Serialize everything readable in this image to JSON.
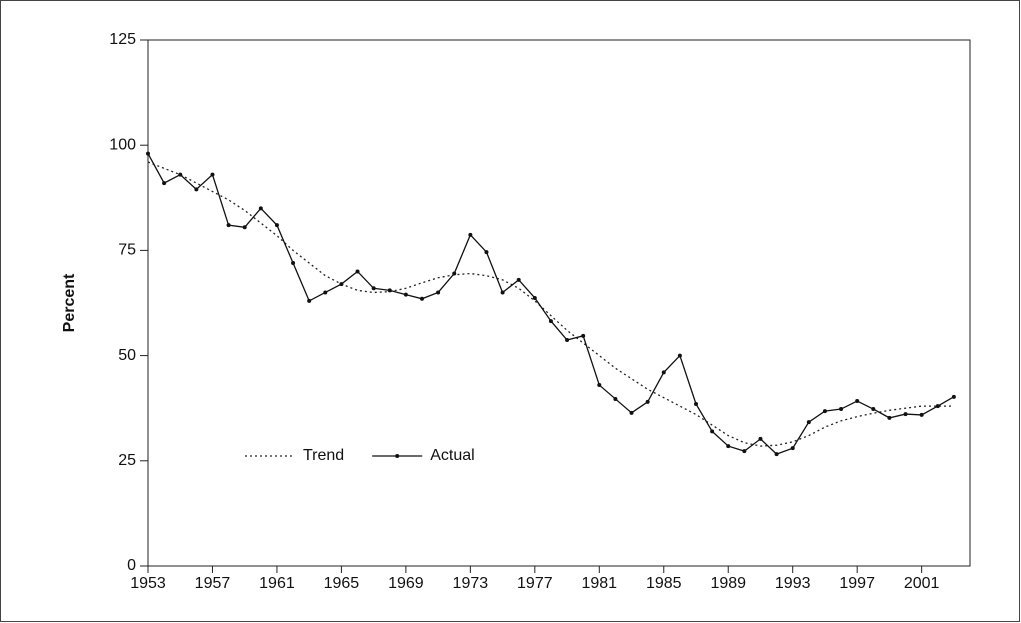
{
  "chart_data": {
    "type": "line",
    "y_label": "Percent",
    "x": [
      1953,
      1954,
      1955,
      1956,
      1957,
      1958,
      1959,
      1960,
      1961,
      1962,
      1963,
      1964,
      1965,
      1966,
      1967,
      1968,
      1969,
      1970,
      1971,
      1972,
      1973,
      1974,
      1975,
      1976,
      1977,
      1978,
      1979,
      1980,
      1981,
      1982,
      1983,
      1984,
      1985,
      1986,
      1987,
      1988,
      1989,
      1990,
      1991,
      1992,
      1993,
      1994,
      1995,
      1996,
      1997,
      1998,
      1999,
      2000,
      2001,
      2002,
      2003
    ],
    "series": [
      {
        "name": "Trend",
        "color": "#222222",
        "style": "dotted",
        "markers": false,
        "values": [
          96,
          94.5,
          93,
          91,
          89,
          87,
          84.5,
          81.5,
          78.5,
          75,
          72,
          69,
          67,
          65.5,
          65,
          65.2,
          66,
          67.3,
          68.5,
          69.2,
          69.5,
          69,
          68,
          66,
          63,
          59.5,
          56,
          53,
          50,
          47,
          44.5,
          42,
          40,
          38,
          36,
          33.5,
          31,
          29.3,
          28.5,
          28.7,
          29.5,
          31,
          33,
          34.5,
          35.5,
          36.3,
          37,
          37.5,
          38,
          38,
          38
        ]
      },
      {
        "name": "Actual",
        "color": "#111111",
        "style": "solid",
        "markers": true,
        "values": [
          98,
          91,
          93,
          89.5,
          93,
          81,
          80.5,
          85,
          81,
          72,
          63,
          65,
          67,
          70,
          66,
          65.5,
          64.5,
          63.5,
          65,
          69.5,
          78.7,
          74.6,
          65,
          68,
          63.7,
          58.2,
          53.7,
          54.7,
          43,
          39.7,
          36.4,
          39,
          46,
          50,
          38.5,
          32,
          28.5,
          27.3,
          30.2,
          26.6,
          28,
          34.2,
          36.8,
          37.3,
          39.2,
          37.3,
          35.2,
          36.1,
          35.9,
          38,
          40.2
        ]
      }
    ],
    "xlim": [
      1953,
      2004
    ],
    "xticks": [
      1953,
      1957,
      1961,
      1965,
      1969,
      1973,
      1977,
      1981,
      1985,
      1989,
      1993,
      1997,
      2001
    ],
    "ylim": [
      0,
      125
    ],
    "yticks": [
      0,
      25,
      50,
      75,
      100,
      125
    ],
    "grid": false,
    "legend_position": "lower-left"
  }
}
